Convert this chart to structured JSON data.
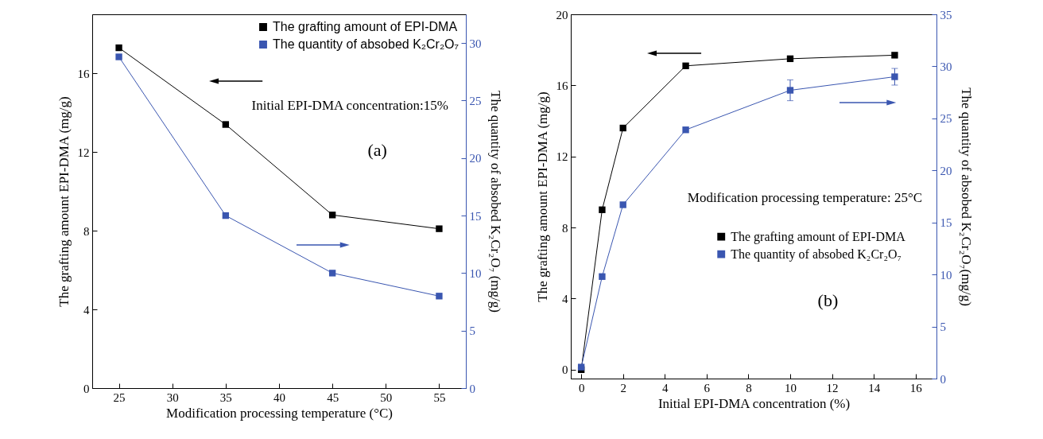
{
  "chart_data": [
    {
      "type": "line",
      "xlabel": "Modification processing temperature (°C)",
      "ylabel": "The grafting amount EPI-DMA (mg/g)",
      "y2label": "The quantity of absobed K₂Cr₂O₇ (mg/g)",
      "x": [
        25,
        35,
        45,
        55
      ],
      "series": [
        {
          "name": "The grafting amount of EPI-DMA",
          "color": "#000000",
          "values": [
            17.3,
            13.4,
            8.8,
            8.1
          ]
        },
        {
          "name": "The quantity of absobed K₂Cr₂O₇",
          "color": "#3a56b0",
          "axis": "y2",
          "values": [
            28.8,
            15.0,
            10.0,
            8.0
          ]
        }
      ],
      "xlim": [
        22.5,
        57.5
      ],
      "xticks": [
        25,
        30,
        35,
        40,
        45,
        50,
        55
      ],
      "ylim": [
        0,
        19
      ],
      "yticks": [
        0,
        4,
        8,
        12,
        16
      ],
      "y2lim": [
        0,
        32.5
      ],
      "y2ticks": [
        0,
        5,
        10,
        15,
        20,
        25,
        30
      ],
      "legend": "top right",
      "marker": "square",
      "grid": false,
      "annotations": [
        "Initial EPI-DMA concentration:15%",
        "(a)"
      ]
    },
    {
      "type": "line",
      "xlabel": "Initial EPI-DMA concentration (%)",
      "ylabel": "The grafting amount EPI-DMA (mg/g)",
      "y2label": "The quantity of absobed K₂Cr₂O₇(mg/g)",
      "x": [
        0,
        1,
        2,
        5,
        10,
        15
      ],
      "series": [
        {
          "name": "The grafting amount of EPI-DMA",
          "color": "#000000",
          "values": [
            0,
            9.0,
            13.6,
            17.1,
            17.5,
            17.7
          ]
        },
        {
          "name": "The quantity of absobed K₂Cr₂O₇",
          "color": "#3a56b0",
          "axis": "y2",
          "values": [
            1.1,
            9.8,
            16.7,
            23.9,
            27.7,
            29.0
          ],
          "errors": [
            null,
            null,
            null,
            null,
            1.0,
            0.8
          ]
        }
      ],
      "xlim": [
        -0.5,
        17
      ],
      "xticks": [
        0,
        2,
        4,
        6,
        8,
        10,
        12,
        14,
        16
      ],
      "ylim": [
        -0.5,
        20
      ],
      "yticks": [
        0,
        4,
        8,
        12,
        16,
        20
      ],
      "y2lim": [
        0,
        35
      ],
      "y2ticks": [
        0,
        5,
        10,
        15,
        20,
        25,
        30,
        35
      ],
      "legend": "right",
      "marker": "square",
      "grid": false,
      "annotations": [
        "Modification processing temperature: 25°C",
        "(b)"
      ]
    }
  ]
}
